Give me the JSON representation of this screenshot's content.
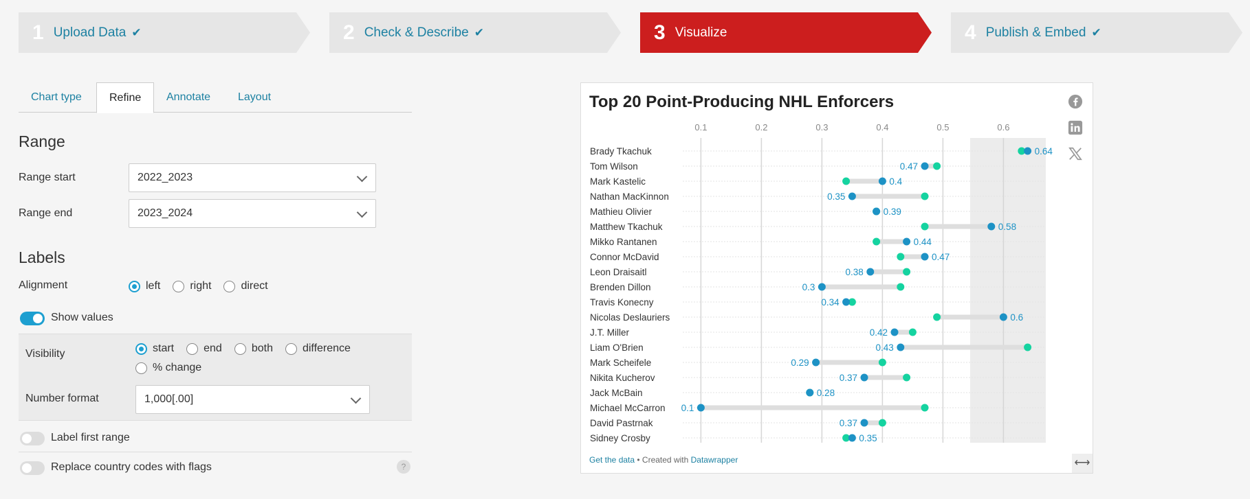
{
  "steps": [
    {
      "num": "1",
      "label": "Upload Data",
      "check": "✔"
    },
    {
      "num": "2",
      "label": "Check & Describe",
      "check": "✔"
    },
    {
      "num": "3",
      "label": "Visualize",
      "check": ""
    },
    {
      "num": "4",
      "label": "Publish & Embed",
      "check": "✔"
    }
  ],
  "tabs": [
    "Chart type",
    "Refine",
    "Annotate",
    "Layout"
  ],
  "range": {
    "heading": "Range",
    "start_label": "Range start",
    "start_value": "2022_2023",
    "end_label": "Range end",
    "end_value": "2023_2024"
  },
  "labels": {
    "heading": "Labels",
    "alignment_label": "Alignment",
    "alignment_options": [
      "left",
      "right",
      "direct"
    ],
    "show_values": "Show values",
    "visibility_label": "Visibility",
    "visibility_options": [
      "start",
      "end",
      "both",
      "difference",
      "% change"
    ],
    "number_format_label": "Number format",
    "number_format_value": "1,000[.00]",
    "label_first_range": "Label first range",
    "replace_flags": "Replace country codes with flags",
    "help": "?"
  },
  "colors": {
    "accent": "#1d9fd0",
    "active_step": "#cc1e1e",
    "start_dot": "#1d92c5",
    "end_dot": "#15d3a0",
    "highlight_band": "#ececec"
  },
  "chart_data": {
    "type": "range-plot",
    "title": "Top 20 Point-Producing NHL Enforcers",
    "x_ticks": [
      0.1,
      0.2,
      0.3,
      0.4,
      0.5,
      0.6
    ],
    "xlim": [
      0.07,
      0.67
    ],
    "highlight_range": [
      0.545,
      0.67
    ],
    "rows": [
      {
        "name": "Brady Tkachuk",
        "start": 0.64,
        "end": 0.63
      },
      {
        "name": "Tom Wilson",
        "start": 0.47,
        "end": 0.49
      },
      {
        "name": "Mark Kastelic",
        "start": 0.4,
        "end": 0.34
      },
      {
        "name": "Nathan MacKinnon",
        "start": 0.35,
        "end": 0.47
      },
      {
        "name": "Mathieu Olivier",
        "start": 0.39,
        "end": 0.39
      },
      {
        "name": "Matthew Tkachuk",
        "start": 0.58,
        "end": 0.47
      },
      {
        "name": "Mikko Rantanen",
        "start": 0.44,
        "end": 0.39
      },
      {
        "name": "Connor McDavid",
        "start": 0.47,
        "end": 0.43
      },
      {
        "name": "Leon Draisaitl",
        "start": 0.38,
        "end": 0.44
      },
      {
        "name": "Brenden Dillon",
        "start": 0.3,
        "end": 0.43
      },
      {
        "name": "Travis Konecny",
        "start": 0.34,
        "end": 0.35
      },
      {
        "name": "Nicolas Deslauriers",
        "start": 0.6,
        "end": 0.49
      },
      {
        "name": "J.T. Miller",
        "start": 0.42,
        "end": 0.45
      },
      {
        "name": "Liam O'Brien",
        "start": 0.43,
        "end": 0.64
      },
      {
        "name": "Mark Scheifele",
        "start": 0.29,
        "end": 0.4
      },
      {
        "name": "Nikita Kucherov",
        "start": 0.37,
        "end": 0.44
      },
      {
        "name": "Jack McBain",
        "start": 0.28,
        "end": 0.28
      },
      {
        "name": "Michael McCarron",
        "start": 0.1,
        "end": 0.47
      },
      {
        "name": "David Pastrnak",
        "start": 0.37,
        "end": 0.4
      },
      {
        "name": "Sidney Crosby",
        "start": 0.35,
        "end": 0.34
      }
    ],
    "value_labels": [
      "0.64",
      "0.47",
      "0.4",
      "0.35",
      "0.39",
      "0.58",
      "0.44",
      "0.47",
      "0.38",
      "0.3",
      "0.34",
      "0.6",
      "0.42",
      "0.43",
      "0.29",
      "0.37",
      "0.28",
      "0.1",
      "0.37",
      "0.35"
    ],
    "grid": true
  },
  "footer": {
    "get_data": "Get the data",
    "sep": " • Created with ",
    "brand": "Datawrapper"
  },
  "icons": [
    "facebook-icon",
    "linkedin-icon",
    "x-icon",
    "expand-icon"
  ]
}
